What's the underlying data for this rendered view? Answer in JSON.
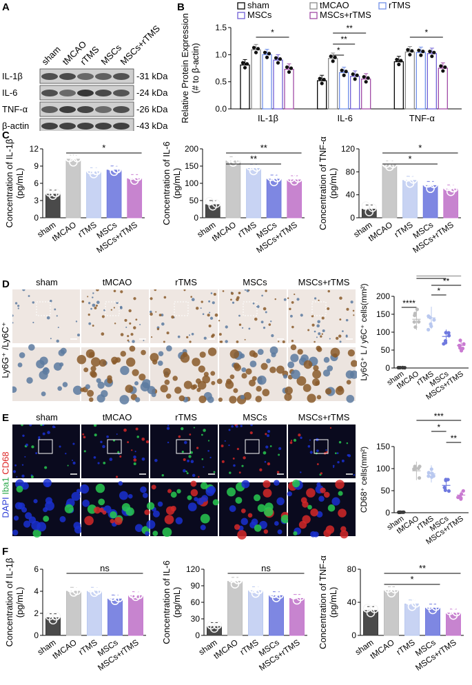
{
  "panels": {
    "A": "A",
    "B": "B",
    "C": "C",
    "D": "D",
    "E": "E",
    "F": "F"
  },
  "groups": [
    "sham",
    "tMCAO",
    "rTMS",
    "MSCs",
    "MSCs+rTMS"
  ],
  "colors": {
    "sham": "#3a3a3a",
    "tMCAO": "#bdbdbd",
    "rTMS": "#b9c8ef",
    "MSCs": "#6f79df",
    "MSCs+rTMS": "#c97ad1",
    "sham_fill": "#4a4a4a",
    "tMCAO_fill": "#c9c9c9",
    "rTMS_fill": "#c8d3f3",
    "MSCs_fill": "#7e87e2",
    "MSCs+rTMS_fill": "#c784cf",
    "B_sham": "#000000",
    "B_tMCAO": "#8a8a8a",
    "B_rTMS": "#6f8ee8",
    "B_MSCs": "#6f5fd6",
    "B_MSCs+rTMS": "#a04aa6"
  },
  "westernA": {
    "rows": [
      {
        "protein": "IL-1β",
        "kda": "-31 kDa"
      },
      {
        "protein": "IL-6",
        "kda": "-24 kDa"
      },
      {
        "protein": "TNF-α",
        "kda": "-26 kDa"
      },
      {
        "protein": "β-actin",
        "kda": "-43 kDa"
      }
    ]
  },
  "panelD": {
    "ylabel_side": "Ly6G⁺ /Ly6C⁺"
  },
  "panelE": {
    "ylabel_side_parts": [
      "DAPI",
      "Iba1",
      "CD68"
    ]
  },
  "chart_data": [
    {
      "id": "B",
      "type": "bar",
      "categories": [
        "IL-1β",
        "IL-6",
        "TNF-α"
      ],
      "ylabel": "Relative Protein Expression\n(# to β-actin)",
      "ylim": [
        0,
        1.5
      ],
      "yticks": [
        "0.0",
        "0.5",
        "1.0",
        "1.5"
      ],
      "legend": [
        "sham",
        "tMCAO",
        "rTMS",
        "MSCs",
        "MSCs+rTMS"
      ],
      "series": [
        {
          "name": "sham",
          "values": [
            0.81,
            0.52,
            0.87
          ]
        },
        {
          "name": "tMCAO",
          "values": [
            1.09,
            0.93,
            1.05
          ]
        },
        {
          "name": "rTMS",
          "values": [
            1.0,
            0.67,
            1.04
          ]
        },
        {
          "name": "MSCs",
          "values": [
            0.9,
            0.6,
            1.02
          ]
        },
        {
          "name": "MSCs+rTMS",
          "values": [
            0.73,
            0.55,
            0.75
          ]
        }
      ],
      "sig": [
        {
          "cat": 0,
          "from": 1,
          "to": 4,
          "label": "*"
        },
        {
          "cat": 1,
          "from": 1,
          "to": 4,
          "label": "**"
        },
        {
          "cat": 1,
          "from": 1,
          "to": 3,
          "label": "**"
        },
        {
          "cat": 1,
          "from": 1,
          "to": 2,
          "label": "*"
        },
        {
          "cat": 2,
          "from": 1,
          "to": 4,
          "label": "*"
        }
      ]
    },
    {
      "id": "C1",
      "type": "bar",
      "ylabel": "Concentration of IL-1β\n(pg/mL)",
      "ylim": [
        0,
        12
      ],
      "yticks": [
        "0",
        "3",
        "6",
        "9",
        "12"
      ],
      "categories": [
        "sham",
        "tMCAO",
        "rTMS",
        "MSCs",
        "MSCs+rTMS"
      ],
      "values": [
        4.1,
        10.2,
        8.0,
        8.3,
        6.8
      ],
      "sig": [
        {
          "from": 1,
          "to": 4,
          "label": "*"
        }
      ]
    },
    {
      "id": "C2",
      "type": "bar",
      "ylabel": "Concentration of IL-6\n(pg/mL)",
      "ylim": [
        0,
        200
      ],
      "yticks": [
        "0",
        "50",
        "100",
        "150",
        "200"
      ],
      "categories": [
        "sham",
        "tMCAO",
        "rTMS",
        "MSCs",
        "MSCs+rTMS"
      ],
      "values": [
        38,
        165,
        143,
        112,
        110
      ],
      "sig": [
        {
          "from": 1,
          "to": 4,
          "label": "**"
        },
        {
          "from": 1,
          "to": 3,
          "label": "**"
        }
      ]
    },
    {
      "id": "C3",
      "type": "bar",
      "ylabel": "Concentration of TNF-α\n(pg/mL)",
      "ylim": [
        0,
        120
      ],
      "yticks": [
        "0",
        "40",
        "80",
        "120"
      ],
      "categories": [
        "sham",
        "tMCAO",
        "rTMS",
        "MSCs",
        "MSCs+rTMS"
      ],
      "values": [
        15,
        92,
        65,
        56,
        50
      ],
      "sig": [
        {
          "from": 1,
          "to": 4,
          "label": "*"
        },
        {
          "from": 1,
          "to": 3,
          "label": "*"
        }
      ]
    },
    {
      "id": "D",
      "type": "scatter",
      "ylabel": "Ly6G⁺ L / y6C⁺ cells(mm²)",
      "ylim": [
        0,
        200
      ],
      "yticks": [
        "0",
        "50",
        "100",
        "150",
        "200"
      ],
      "categories": [
        "sham",
        "tMCAO",
        "rTMS",
        "MSCs",
        "MSCs+rTMS"
      ],
      "values": [
        1,
        136,
        140,
        88,
        63
      ],
      "sig": [
        {
          "from": 0,
          "to": 1,
          "label": "****"
        },
        {
          "from": 2,
          "to": 3,
          "label": "*"
        },
        {
          "from": 2,
          "to": 4,
          "label": "**"
        },
        {
          "from": 1,
          "to": 3,
          "label": "*"
        },
        {
          "from": 1,
          "to": 4,
          "label": "**"
        }
      ]
    },
    {
      "id": "E",
      "type": "scatter",
      "ylabel": "CD68⁺ cells(mm²)",
      "ylim": [
        0,
        150
      ],
      "yticks": [
        "0",
        "50",
        "100",
        "150"
      ],
      "categories": [
        "sham",
        "tMCAO",
        "rTMS",
        "MSCs",
        "MSCs+rTMS"
      ],
      "values": [
        1,
        95,
        88,
        62,
        40
      ],
      "sig": [
        {
          "from": 3,
          "to": 4,
          "label": "**"
        },
        {
          "from": 2,
          "to": 3,
          "label": "*"
        },
        {
          "from": 1,
          "to": 4,
          "label": "***"
        }
      ]
    },
    {
      "id": "F1",
      "type": "bar",
      "ylabel": "Concentration of IL-1β\n(pg/mL)",
      "ylim": [
        0,
        6
      ],
      "yticks": [
        "0",
        "2",
        "4",
        "6"
      ],
      "categories": [
        "sham",
        "tMCAO",
        "rTMS",
        "MSCs",
        "MSCs+rTMS"
      ],
      "values": [
        1.6,
        4.0,
        4.0,
        3.3,
        3.6
      ],
      "sig": [
        {
          "from": 1,
          "to": 4,
          "label": "ns"
        }
      ]
    },
    {
      "id": "F2",
      "type": "bar",
      "ylabel": "Concentration of IL-6\n(pg/mL)",
      "ylim": [
        0,
        120
      ],
      "yticks": [
        "0",
        "30",
        "60",
        "90",
        "120"
      ],
      "categories": [
        "sham",
        "tMCAO",
        "rTMS",
        "MSCs",
        "MSCs+rTMS"
      ],
      "values": [
        16,
        98,
        81,
        72,
        67
      ],
      "sig": [
        {
          "from": 1,
          "to": 4,
          "label": "ns"
        }
      ]
    },
    {
      "id": "F3",
      "type": "bar",
      "ylabel": "Concentration of TNF-α\n(pg/mL)",
      "ylim": [
        0,
        80
      ],
      "yticks": [
        "0",
        "40",
        "80"
      ],
      "categories": [
        "sham",
        "tMCAO",
        "rTMS",
        "MSCs",
        "MSCs+rTMS"
      ],
      "values": [
        30,
        54,
        38,
        33,
        27
      ],
      "sig": [
        {
          "from": 1,
          "to": 4,
          "label": "**"
        },
        {
          "from": 1,
          "to": 3,
          "label": "*"
        }
      ]
    }
  ]
}
